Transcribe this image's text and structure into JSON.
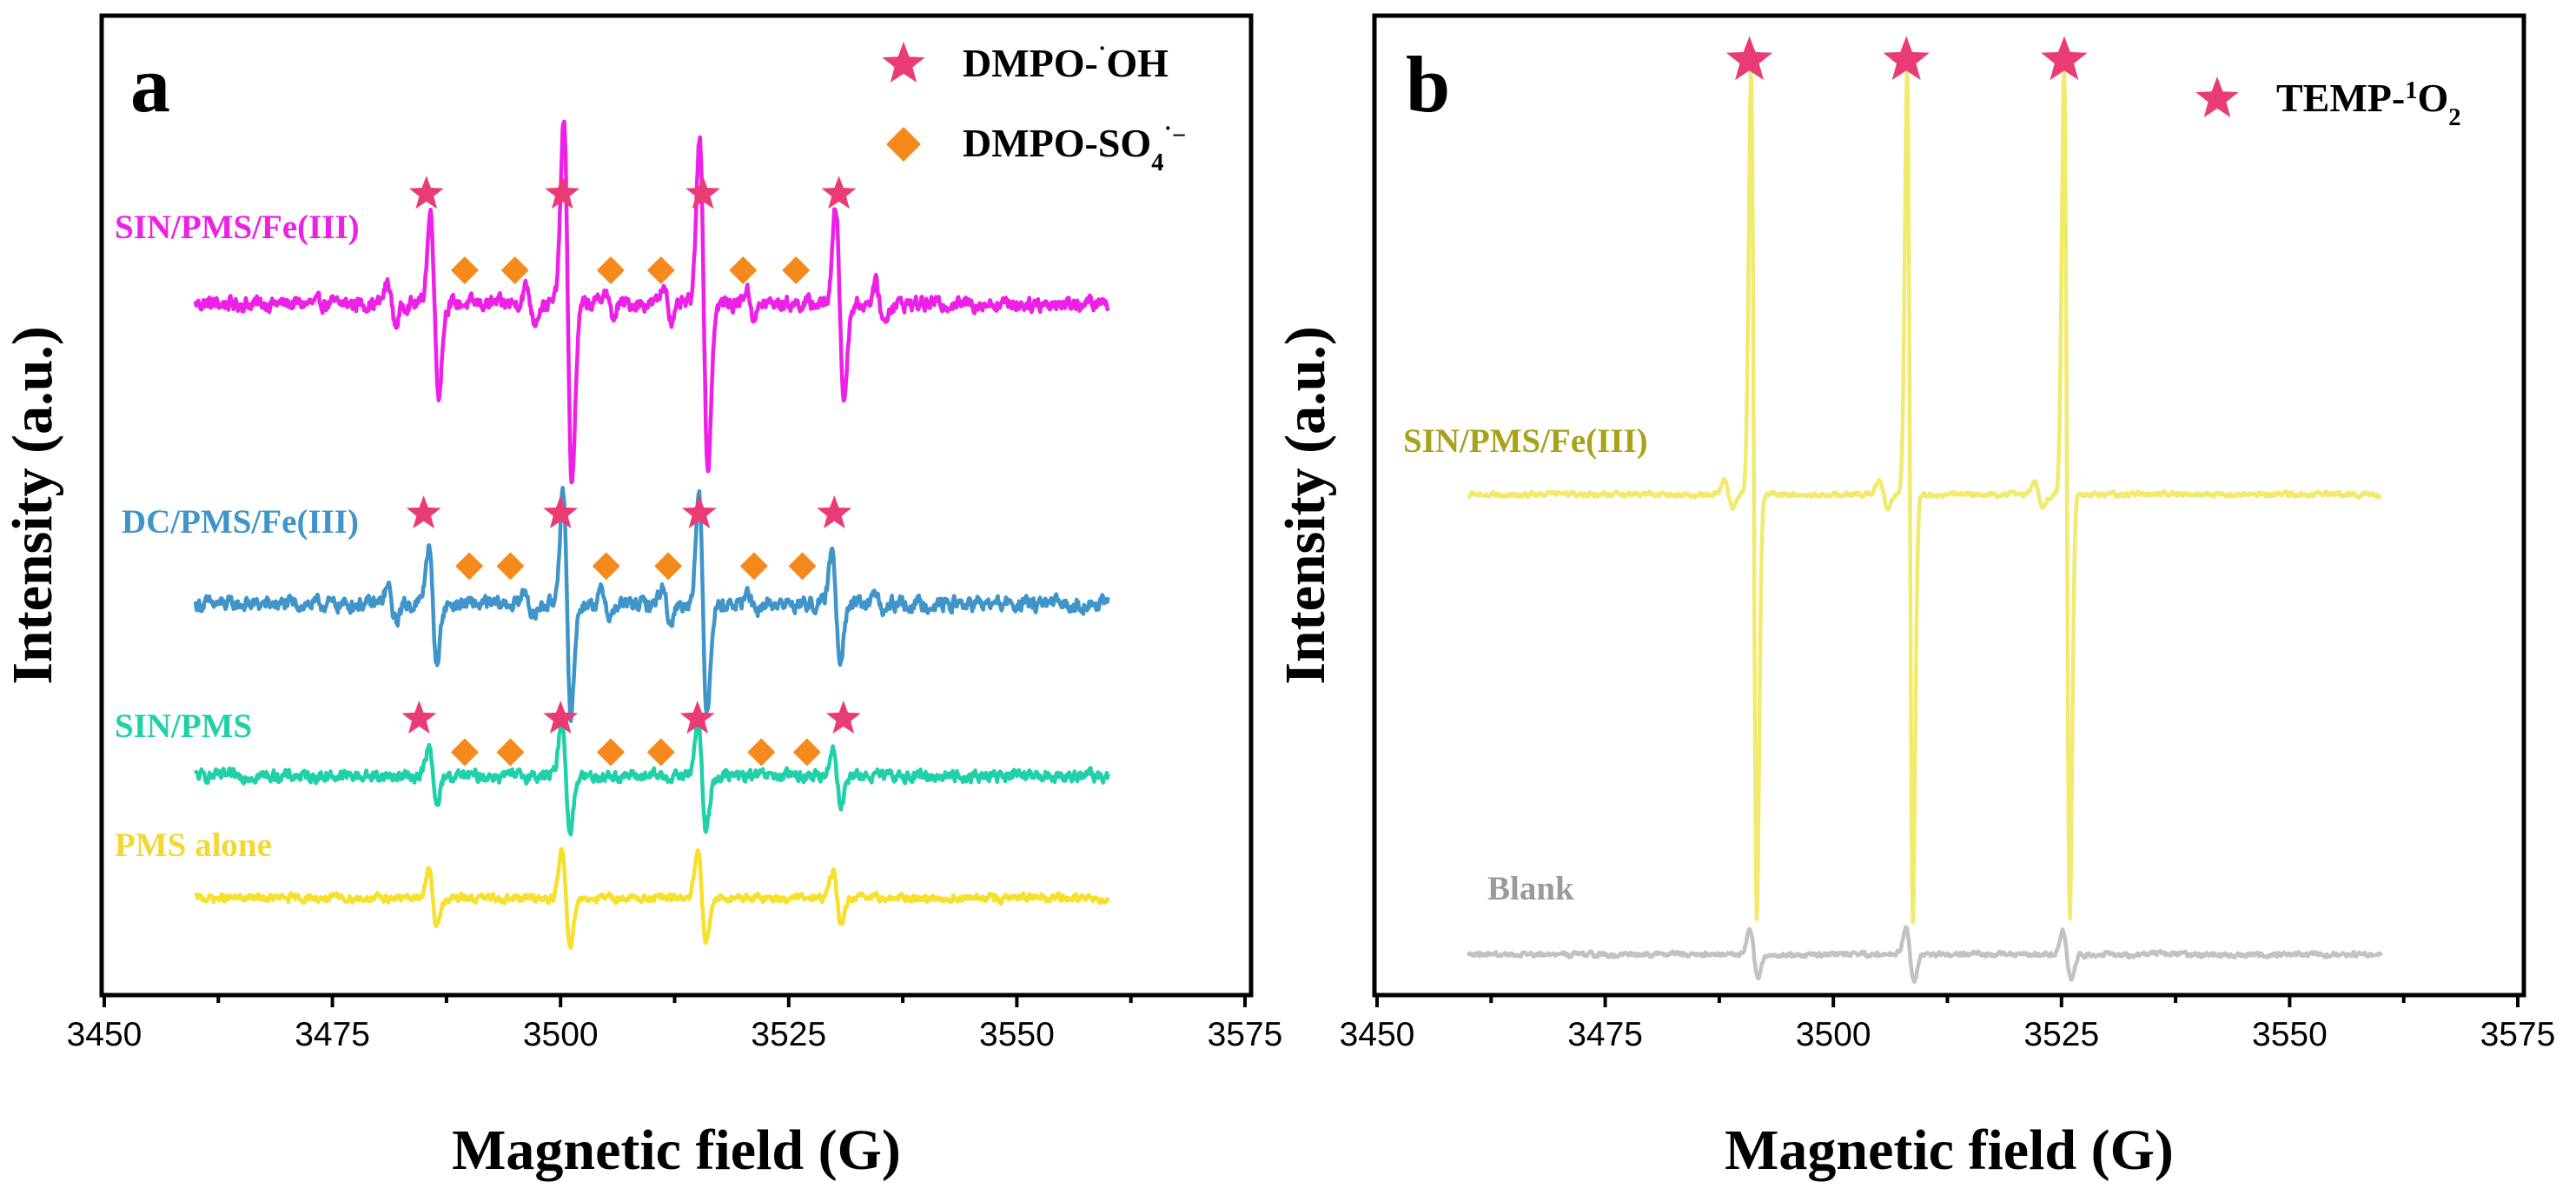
{
  "colors": {
    "magenta": "#ee1fe6",
    "blue": "#3f95c9",
    "teal": "#20d0a8",
    "yellow": "#f7e02c",
    "yellow_label": "#f2d836",
    "light_yellow": "#f1ea6c",
    "olive_label": "#a8a21a",
    "gray": "#c2c2c2",
    "gray_label": "#9a9a9a",
    "star": "#ea3c74",
    "diamond": "#f5891b",
    "axis": "#000000"
  },
  "chart_data": [
    {
      "panel": "a",
      "type": "line",
      "title": "",
      "xlabel": "Magnetic field (G)",
      "ylabel": "Intensity (a.u.)",
      "xlim": [
        3450,
        3575
      ],
      "xticks": [
        3450,
        3475,
        3500,
        3525,
        3550,
        3575
      ],
      "x_range": [
        3460,
        3560
      ],
      "y_ticks_shown": false,
      "legend": {
        "position": "top-right",
        "entries": [
          {
            "marker": "star",
            "label": "DMPO-˙OH",
            "parts": [
              [
                "DMPO-",
                ""
              ],
              [
                "˙",
                "sup"
              ],
              [
                "OH",
                ""
              ]
            ]
          },
          {
            "marker": "diamond",
            "label": "DMPO-SO4˙−",
            "parts": [
              [
                "DMPO-SO",
                ""
              ],
              [
                "4",
                "sub"
              ],
              [
                "˙−",
                "sup"
              ]
            ]
          }
        ]
      },
      "series": [
        {
          "name": "SIN/PMS/Fe(III)",
          "color_key": "magenta",
          "label_color_key": "magenta",
          "baseline": 0.72,
          "noise": 0.0075,
          "peaks": [
            {
              "x": 3481.5,
              "a": 0.022
            },
            {
              "x": 3486.2,
              "a": 0.095
            },
            {
              "x": 3496.7,
              "a": 0.018
            },
            {
              "x": 3500.8,
              "a": 0.19
            },
            {
              "x": 3505.3,
              "a": 0.014
            },
            {
              "x": 3511.8,
              "a": 0.02
            },
            {
              "x": 3515.7,
              "a": 0.175
            },
            {
              "x": 3520.8,
              "a": 0.014
            },
            {
              "x": 3530.6,
              "a": 0.1
            },
            {
              "x": 3535.0,
              "a": 0.02
            }
          ],
          "stars_x": [
            3485.3,
            3500.2,
            3515.6,
            3530.5
          ],
          "diamonds_x": [
            3489.5,
            3495.0,
            3505.5,
            3511.0,
            3520.0,
            3525.8
          ],
          "star_y": 0.835,
          "diamond_y": 0.755
        },
        {
          "name": "DC/PMS/Fe(III)",
          "color_key": "blue",
          "label_color_key": "blue",
          "baseline": 0.405,
          "noise": 0.0075,
          "peaks": [
            {
              "x": 3481.5,
              "a": 0.018
            },
            {
              "x": 3486.0,
              "a": 0.06
            },
            {
              "x": 3496.6,
              "a": 0.014
            },
            {
              "x": 3500.7,
              "a": 0.115
            },
            {
              "x": 3505.0,
              "a": 0.014
            },
            {
              "x": 3511.6,
              "a": 0.018
            },
            {
              "x": 3515.6,
              "a": 0.112
            },
            {
              "x": 3521.0,
              "a": 0.012
            },
            {
              "x": 3530.2,
              "a": 0.055
            },
            {
              "x": 3535.0,
              "a": 0.01
            }
          ],
          "stars_x": [
            3485.0,
            3500.0,
            3515.2,
            3530.0
          ],
          "diamonds_x": [
            3490.0,
            3494.5,
            3505.0,
            3511.8,
            3521.2,
            3526.5
          ],
          "star_y": 0.5,
          "diamond_y": 0.445
        },
        {
          "name": "SIN/PMS",
          "color_key": "teal",
          "label_color_key": "teal",
          "baseline": 0.225,
          "noise": 0.006,
          "peaks": [
            {
              "x": 3486.0,
              "a": 0.03
            },
            {
              "x": 3500.6,
              "a": 0.06
            },
            {
              "x": 3515.5,
              "a": 0.058
            },
            {
              "x": 3530.3,
              "a": 0.03
            }
          ],
          "stars_x": [
            3484.5,
            3500.0,
            3515.0,
            3531.0
          ],
          "diamonds_x": [
            3489.5,
            3494.5,
            3505.5,
            3511.0,
            3522.0,
            3527.0
          ],
          "star_y": 0.285,
          "diamond_y": 0.25
        },
        {
          "name": "PMS alone",
          "color_key": "yellow",
          "label_color_key": "yellow_label",
          "baseline": 0.097,
          "noise": 0.004,
          "peaks": [
            {
              "x": 3486.0,
              "a": 0.03
            },
            {
              "x": 3500.6,
              "a": 0.05
            },
            {
              "x": 3515.5,
              "a": 0.048
            },
            {
              "x": 3530.3,
              "a": 0.028
            }
          ],
          "stars_x": [],
          "diamonds_x": [],
          "star_y": 0,
          "diamond_y": 0
        }
      ]
    },
    {
      "panel": "b",
      "type": "line",
      "title": "",
      "xlabel": "Magnetic field (G)",
      "ylabel": "Intensity (a.u.)",
      "xlim": [
        3450,
        3575
      ],
      "xticks": [
        3450,
        3475,
        3500,
        3525,
        3550,
        3575
      ],
      "x_range": [
        3460,
        3560
      ],
      "y_ticks_shown": false,
      "legend": {
        "position": "top-right",
        "entries": [
          {
            "marker": "star",
            "label": "TEMP-1O2",
            "parts": [
              [
                "TEMP-",
                ""
              ],
              [
                "1",
                "sup"
              ],
              [
                "O",
                ""
              ],
              [
                "2",
                "sub"
              ]
            ]
          }
        ]
      },
      "series": [
        {
          "name": "SIN/PMS/Fe(III)",
          "color_key": "light_yellow",
          "label_color_key": "olive_label",
          "baseline": 0.52,
          "noise": 0.0025,
          "peaks": [
            {
              "x": 3491.3,
              "a": 0.445
            },
            {
              "x": 3508.4,
              "a": 0.445
            },
            {
              "x": 3525.6,
              "a": 0.445
            },
            {
              "x": 3488.5,
              "a": 0.015
            },
            {
              "x": 3505.5,
              "a": 0.015
            },
            {
              "x": 3522.5,
              "a": 0.015
            }
          ],
          "stars_x": [
            3490.8,
            3508.0,
            3525.3
          ],
          "diamonds_x": [],
          "star_y": 0.975,
          "diamond_y": 0
        },
        {
          "name": "Blank",
          "color_key": "gray",
          "label_color_key": "gray_label",
          "baseline": 0.038,
          "noise": 0.0025,
          "peaks": [
            {
              "x": 3491.3,
              "a": 0.025
            },
            {
              "x": 3508.4,
              "a": 0.027
            },
            {
              "x": 3525.6,
              "a": 0.024
            }
          ],
          "stars_x": [],
          "diamonds_x": [],
          "star_y": 0,
          "diamond_y": 0
        }
      ]
    }
  ]
}
